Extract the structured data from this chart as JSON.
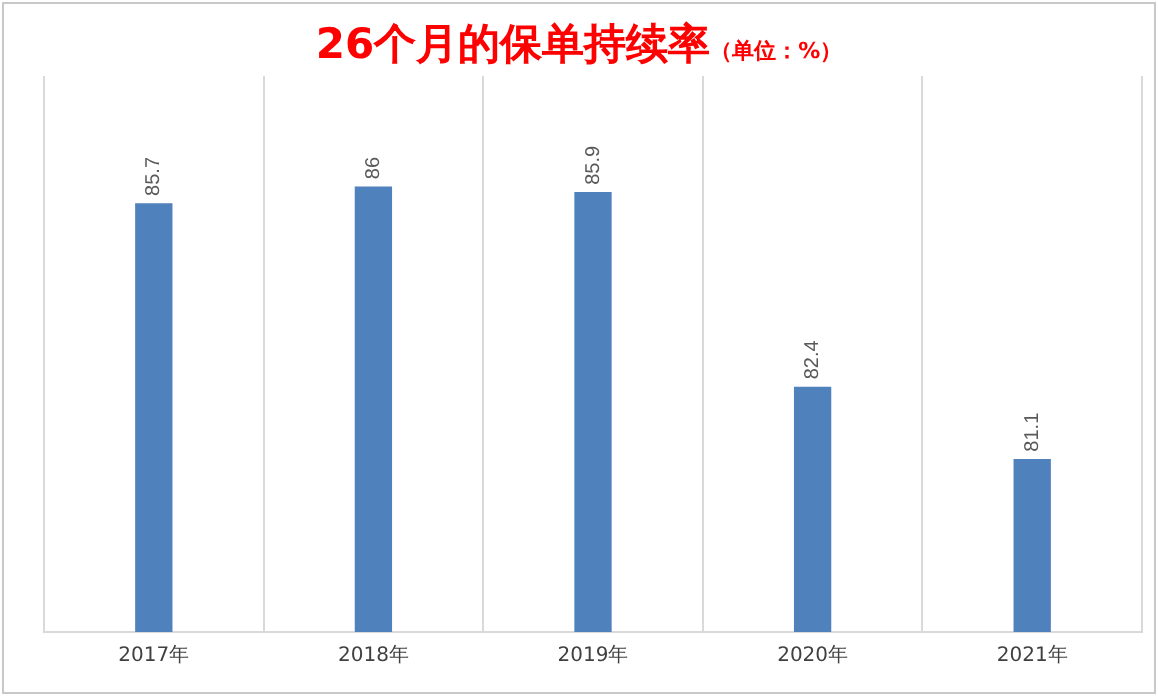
{
  "chart_data": {
    "type": "bar",
    "title": "26个月的保单持续率",
    "subtitle": "（单位：%）",
    "categories": [
      "2017年",
      "2018年",
      "2019年",
      "2020年",
      "2021年"
    ],
    "values": [
      85.7,
      86,
      85.9,
      82.4,
      81.1
    ],
    "color": "#4f81bd",
    "ylim": [
      78,
      88
    ],
    "tick_labels": "x",
    "grid": "x",
    "data_labels": true,
    "legend": false
  }
}
